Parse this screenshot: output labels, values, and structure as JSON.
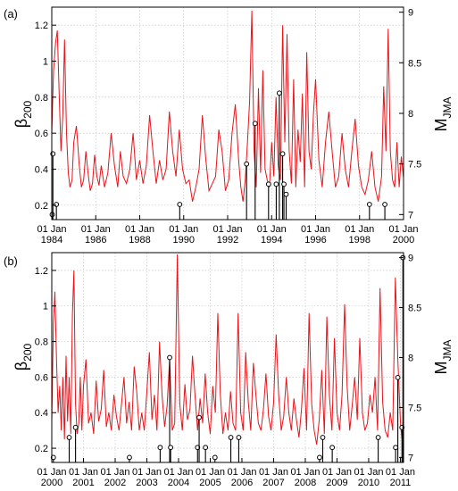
{
  "chart_data": [
    {
      "type": "line",
      "panel_label": "(a)",
      "ylabel_left": "β200",
      "ylabel_right": "MJMA",
      "ylim_left": [
        0.12,
        1.3
      ],
      "ylim_right": [
        6.95,
        9.05
      ],
      "xlim_year": [
        1984.0,
        2000.0
      ],
      "grid": true,
      "left_ticks": [
        "0.2",
        "0.4",
        "0.6",
        "0.8",
        "1",
        "1.2"
      ],
      "right_ticks": [
        "7",
        "7.5",
        "8",
        "8.5",
        "9"
      ],
      "x_ticks": [
        {
          "line1": "01 Jan",
          "line2": "1984"
        },
        {
          "line1": "01 Jan",
          "line2": "1986"
        },
        {
          "line1": "01 Jan",
          "line2": "1988"
        },
        {
          "line1": "01 Jan",
          "line2": "1990"
        },
        {
          "line1": "01 Jan",
          "line2": "1992"
        },
        {
          "line1": "01 Jan",
          "line2": "1994"
        },
        {
          "line1": "01 Jan",
          "line2": "1996"
        },
        {
          "line1": "01 Jan",
          "line2": "1998"
        },
        {
          "line1": "01 Jan",
          "line2": "2000"
        }
      ],
      "series": [
        {
          "color": "#e8141b",
          "x": [
            1984.0,
            1984.08,
            1984.17,
            1984.25,
            1984.33,
            1984.42,
            1984.5,
            1984.58,
            1984.67,
            1984.75,
            1984.83,
            1984.92,
            1985.0,
            1985.12,
            1985.25,
            1985.35,
            1985.45,
            1985.55,
            1985.65,
            1985.75,
            1985.85,
            1985.95,
            1986.05,
            1986.15,
            1986.25,
            1986.4,
            1986.55,
            1986.7,
            1986.85,
            1987.0,
            1987.12,
            1987.25,
            1987.4,
            1987.55,
            1987.7,
            1987.85,
            1988.0,
            1988.15,
            1988.3,
            1988.45,
            1988.6,
            1988.75,
            1988.9,
            1989.05,
            1989.2,
            1989.35,
            1989.5,
            1989.65,
            1989.8,
            1989.95,
            1990.1,
            1990.25,
            1990.4,
            1990.55,
            1990.7,
            1990.85,
            1991.0,
            1991.15,
            1991.3,
            1991.45,
            1991.6,
            1991.75,
            1991.9,
            1992.05,
            1992.2,
            1992.35,
            1992.5,
            1992.6,
            1992.7,
            1992.8,
            1992.9,
            1993.0,
            1993.1,
            1993.2,
            1993.3,
            1993.4,
            1993.5,
            1993.6,
            1993.7,
            1993.8,
            1993.9,
            1994.0,
            1994.1,
            1994.2,
            1994.3,
            1994.4,
            1994.5,
            1994.6,
            1994.7,
            1994.8,
            1994.9,
            1995.0,
            1995.1,
            1995.2,
            1995.3,
            1995.4,
            1995.5,
            1995.6,
            1995.7,
            1995.8,
            1995.9,
            1996.0,
            1996.15,
            1996.3,
            1996.45,
            1996.6,
            1996.75,
            1996.9,
            1997.05,
            1997.2,
            1997.35,
            1997.5,
            1997.65,
            1997.8,
            1997.95,
            1998.1,
            1998.25,
            1998.4,
            1998.55,
            1998.7,
            1998.85,
            1999.0,
            1999.1,
            1999.2,
            1999.3,
            1999.4,
            1999.5,
            1999.6,
            1999.7,
            1999.8,
            1999.9,
            2000.0
          ],
          "y": [
            0.6,
            0.95,
            1.1,
            1.17,
            0.85,
            0.5,
            0.7,
            1.12,
            0.6,
            0.38,
            0.3,
            0.34,
            0.55,
            0.64,
            0.42,
            0.3,
            0.34,
            0.5,
            0.38,
            0.28,
            0.32,
            0.48,
            0.36,
            0.31,
            0.42,
            0.3,
            0.38,
            0.6,
            0.42,
            0.3,
            0.5,
            0.36,
            0.32,
            0.4,
            0.6,
            0.34,
            0.45,
            0.32,
            0.42,
            0.7,
            0.5,
            0.32,
            0.45,
            0.34,
            0.4,
            0.72,
            0.5,
            0.36,
            0.62,
            0.4,
            0.32,
            0.34,
            0.22,
            0.3,
            0.4,
            0.7,
            0.46,
            0.28,
            0.32,
            0.36,
            0.62,
            0.5,
            0.28,
            0.34,
            0.6,
            0.76,
            0.45,
            0.3,
            0.22,
            0.34,
            0.55,
            0.78,
            1.28,
            0.5,
            0.3,
            0.85,
            0.38,
            0.95,
            0.4,
            0.34,
            0.3,
            0.55,
            0.36,
            0.8,
            0.42,
            0.34,
            1.2,
            0.55,
            1.15,
            0.5,
            0.32,
            0.9,
            0.3,
            0.62,
            0.44,
            0.82,
            0.3,
            1.05,
            0.5,
            0.4,
            0.7,
            0.9,
            0.45,
            0.3,
            0.55,
            0.72,
            0.5,
            0.3,
            0.36,
            0.6,
            0.4,
            0.3,
            0.5,
            0.68,
            0.42,
            0.3,
            0.26,
            0.34,
            0.5,
            0.3,
            0.22,
            0.36,
            0.86,
            0.5,
            1.18,
            0.5,
            0.34,
            0.3,
            0.55,
            0.3,
            0.47,
            0.35
          ]
        }
      ],
      "events_x": [
        1984.02,
        1984.05,
        1984.21,
        1989.82,
        1992.86,
        1993.25,
        1993.86,
        1994.21,
        1994.35,
        1994.5,
        1994.56,
        1994.66,
        1998.45,
        1999.15
      ],
      "events_m": [
        7.0,
        7.6,
        7.1,
        7.1,
        7.5,
        7.9,
        7.3,
        7.3,
        8.2,
        7.6,
        7.3,
        7.2,
        7.1,
        7.1
      ]
    },
    {
      "type": "line",
      "panel_label": "(b)",
      "ylabel_left": "β200",
      "ylabel_right": "MJMA",
      "ylim_left": [
        0.12,
        1.3
      ],
      "ylim_right": [
        6.95,
        9.05
      ],
      "xlim_year": [
        2000.0,
        2011.1
      ],
      "grid": true,
      "left_ticks": [
        "0.2",
        "0.4",
        "0.6",
        "0.8",
        "1",
        "1.2"
      ],
      "right_ticks": [
        "7",
        "7.5",
        "8",
        "8.5",
        "9"
      ],
      "x_ticks": [
        {
          "line1": "01 Jan",
          "line2": "2000"
        },
        {
          "line1": "01 Jan",
          "line2": "2001"
        },
        {
          "line1": "01 Jan",
          "line2": "2002"
        },
        {
          "line1": "01 Jan",
          "line2": "2003"
        },
        {
          "line1": "01 Jan",
          "line2": "2004"
        },
        {
          "line1": "01 Jan",
          "line2": "2005"
        },
        {
          "line1": "01 Jan",
          "line2": "2006"
        },
        {
          "line1": "01 Jan",
          "line2": "2007"
        },
        {
          "line1": "01 Jan",
          "line2": "2008"
        },
        {
          "line1": "01 Jan",
          "line2": "2009"
        },
        {
          "line1": "01 Jan",
          "line2": "2010"
        },
        {
          "line1": "01 Jan",
          "line2": "2011"
        }
      ],
      "series": [
        {
          "color": "#e8141b",
          "x": [
            2000.0,
            2000.05,
            2000.1,
            2000.15,
            2000.2,
            2000.25,
            2000.3,
            2000.35,
            2000.4,
            2000.45,
            2000.5,
            2000.55,
            2000.6,
            2000.65,
            2000.7,
            2000.75,
            2000.8,
            2000.85,
            2000.9,
            2000.95,
            2001.0,
            2001.08,
            2001.16,
            2001.24,
            2001.32,
            2001.4,
            2001.48,
            2001.56,
            2001.64,
            2001.72,
            2001.8,
            2001.88,
            2001.96,
            2002.04,
            2002.12,
            2002.2,
            2002.28,
            2002.36,
            2002.44,
            2002.52,
            2002.6,
            2002.68,
            2002.76,
            2002.84,
            2002.92,
            2003.0,
            2003.08,
            2003.16,
            2003.24,
            2003.32,
            2003.4,
            2003.48,
            2003.56,
            2003.64,
            2003.72,
            2003.8,
            2003.88,
            2003.96,
            2004.04,
            2004.12,
            2004.2,
            2004.28,
            2004.36,
            2004.44,
            2004.52,
            2004.6,
            2004.68,
            2004.76,
            2004.84,
            2004.92,
            2005.0,
            2005.08,
            2005.16,
            2005.24,
            2005.32,
            2005.4,
            2005.48,
            2005.56,
            2005.64,
            2005.72,
            2005.8,
            2005.88,
            2005.96,
            2006.04,
            2006.12,
            2006.2,
            2006.28,
            2006.36,
            2006.44,
            2006.52,
            2006.6,
            2006.68,
            2006.76,
            2006.84,
            2006.92,
            2007.0,
            2007.08,
            2007.16,
            2007.24,
            2007.32,
            2007.4,
            2007.48,
            2007.56,
            2007.64,
            2007.72,
            2007.8,
            2007.88,
            2007.96,
            2008.04,
            2008.12,
            2008.2,
            2008.28,
            2008.36,
            2008.44,
            2008.52,
            2008.6,
            2008.68,
            2008.76,
            2008.84,
            2008.92,
            2009.0,
            2009.08,
            2009.16,
            2009.24,
            2009.32,
            2009.4,
            2009.48,
            2009.56,
            2009.64,
            2009.72,
            2009.8,
            2009.88,
            2009.96,
            2010.04,
            2010.12,
            2010.2,
            2010.28,
            2010.36,
            2010.44,
            2010.52,
            2010.6,
            2010.68,
            2010.76,
            2010.84,
            2010.92,
            2011.0,
            2011.05,
            2011.1
          ],
          "y": [
            0.35,
            0.9,
            1.08,
            0.7,
            0.4,
            0.55,
            0.3,
            0.6,
            0.25,
            0.72,
            0.35,
            0.6,
            0.28,
            0.95,
            1.2,
            0.45,
            0.28,
            0.34,
            0.6,
            0.3,
            0.55,
            0.7,
            0.34,
            0.4,
            0.28,
            0.58,
            0.35,
            0.42,
            0.64,
            0.32,
            0.4,
            0.3,
            0.5,
            0.38,
            0.3,
            0.45,
            0.6,
            0.34,
            0.46,
            0.3,
            0.66,
            0.52,
            0.3,
            0.4,
            0.3,
            0.52,
            0.74,
            0.36,
            0.5,
            0.3,
            0.8,
            0.5,
            0.32,
            0.44,
            0.7,
            0.3,
            0.34,
            1.29,
            0.45,
            0.3,
            0.56,
            0.36,
            0.42,
            0.72,
            0.5,
            0.3,
            0.48,
            0.34,
            0.62,
            0.4,
            0.28,
            0.55,
            0.4,
            0.96,
            0.5,
            0.28,
            0.4,
            0.3,
            0.52,
            0.34,
            0.3,
            0.96,
            0.4,
            0.3,
            0.74,
            0.46,
            0.3,
            0.68,
            0.5,
            0.34,
            0.3,
            0.42,
            0.62,
            0.38,
            0.3,
            0.46,
            0.84,
            0.5,
            0.3,
            0.38,
            0.6,
            0.4,
            0.3,
            0.48,
            0.36,
            0.26,
            0.42,
            0.65,
            0.3,
            0.96,
            0.45,
            0.3,
            0.22,
            0.36,
            0.64,
            0.28,
            0.94,
            0.5,
            0.3,
            0.82,
            0.4,
            0.3,
            0.5,
            1.01,
            0.55,
            0.3,
            0.44,
            0.6,
            0.36,
            0.82,
            0.4,
            0.3,
            0.34,
            0.5,
            0.4,
            0.6,
            0.3,
            1.1,
            0.46,
            0.3,
            0.26,
            0.4,
            0.3,
            1.16,
            0.7,
            0.35,
            0.25,
            0.4
          ]
        }
      ],
      "events_x": [
        2000.05,
        2000.55,
        2000.75,
        2002.45,
        2003.42,
        2003.72,
        2003.75,
        2004.6,
        2004.65,
        2004.85,
        2005.15,
        2005.65,
        2005.9,
        2008.45,
        2008.55,
        2008.85,
        2010.3,
        2010.85,
        2010.92,
        2011.05,
        2011.08
      ],
      "events_m": [
        7.0,
        7.2,
        7.3,
        7.0,
        7.1,
        8.0,
        7.1,
        7.1,
        7.4,
        7.1,
        7.0,
        7.2,
        7.2,
        7.0,
        7.2,
        7.1,
        7.2,
        7.1,
        7.8,
        7.3,
        9.0
      ]
    }
  ]
}
